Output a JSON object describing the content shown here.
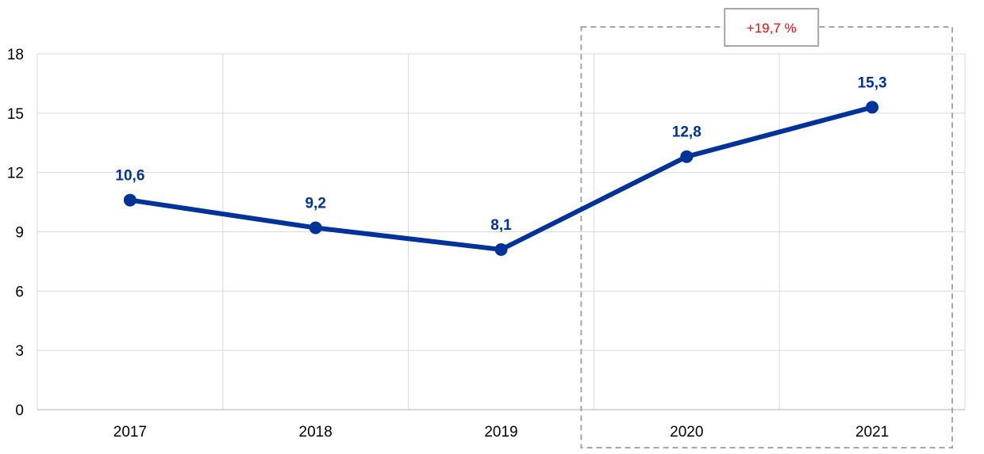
{
  "chart_data": {
    "type": "line",
    "categories": [
      "2017",
      "2018",
      "2019",
      "2020",
      "2021"
    ],
    "values": [
      10.6,
      9.2,
      8.1,
      12.8,
      15.3
    ],
    "data_labels": [
      "10,6",
      "9,2",
      "8,1",
      "12,8",
      "15,3"
    ],
    "ylim": [
      0,
      18
    ],
    "yticks": [
      "0",
      "3",
      "6",
      "9",
      "12",
      "15",
      "18"
    ],
    "title": "",
    "xlabel": "",
    "ylabel": "",
    "grid": true,
    "line_color": "#003399",
    "highlight": {
      "from_category": "2020",
      "to_category": "2021",
      "label": "+19,7 %",
      "label_color": "#ff0000",
      "border_color": "#a6a6a6"
    }
  }
}
